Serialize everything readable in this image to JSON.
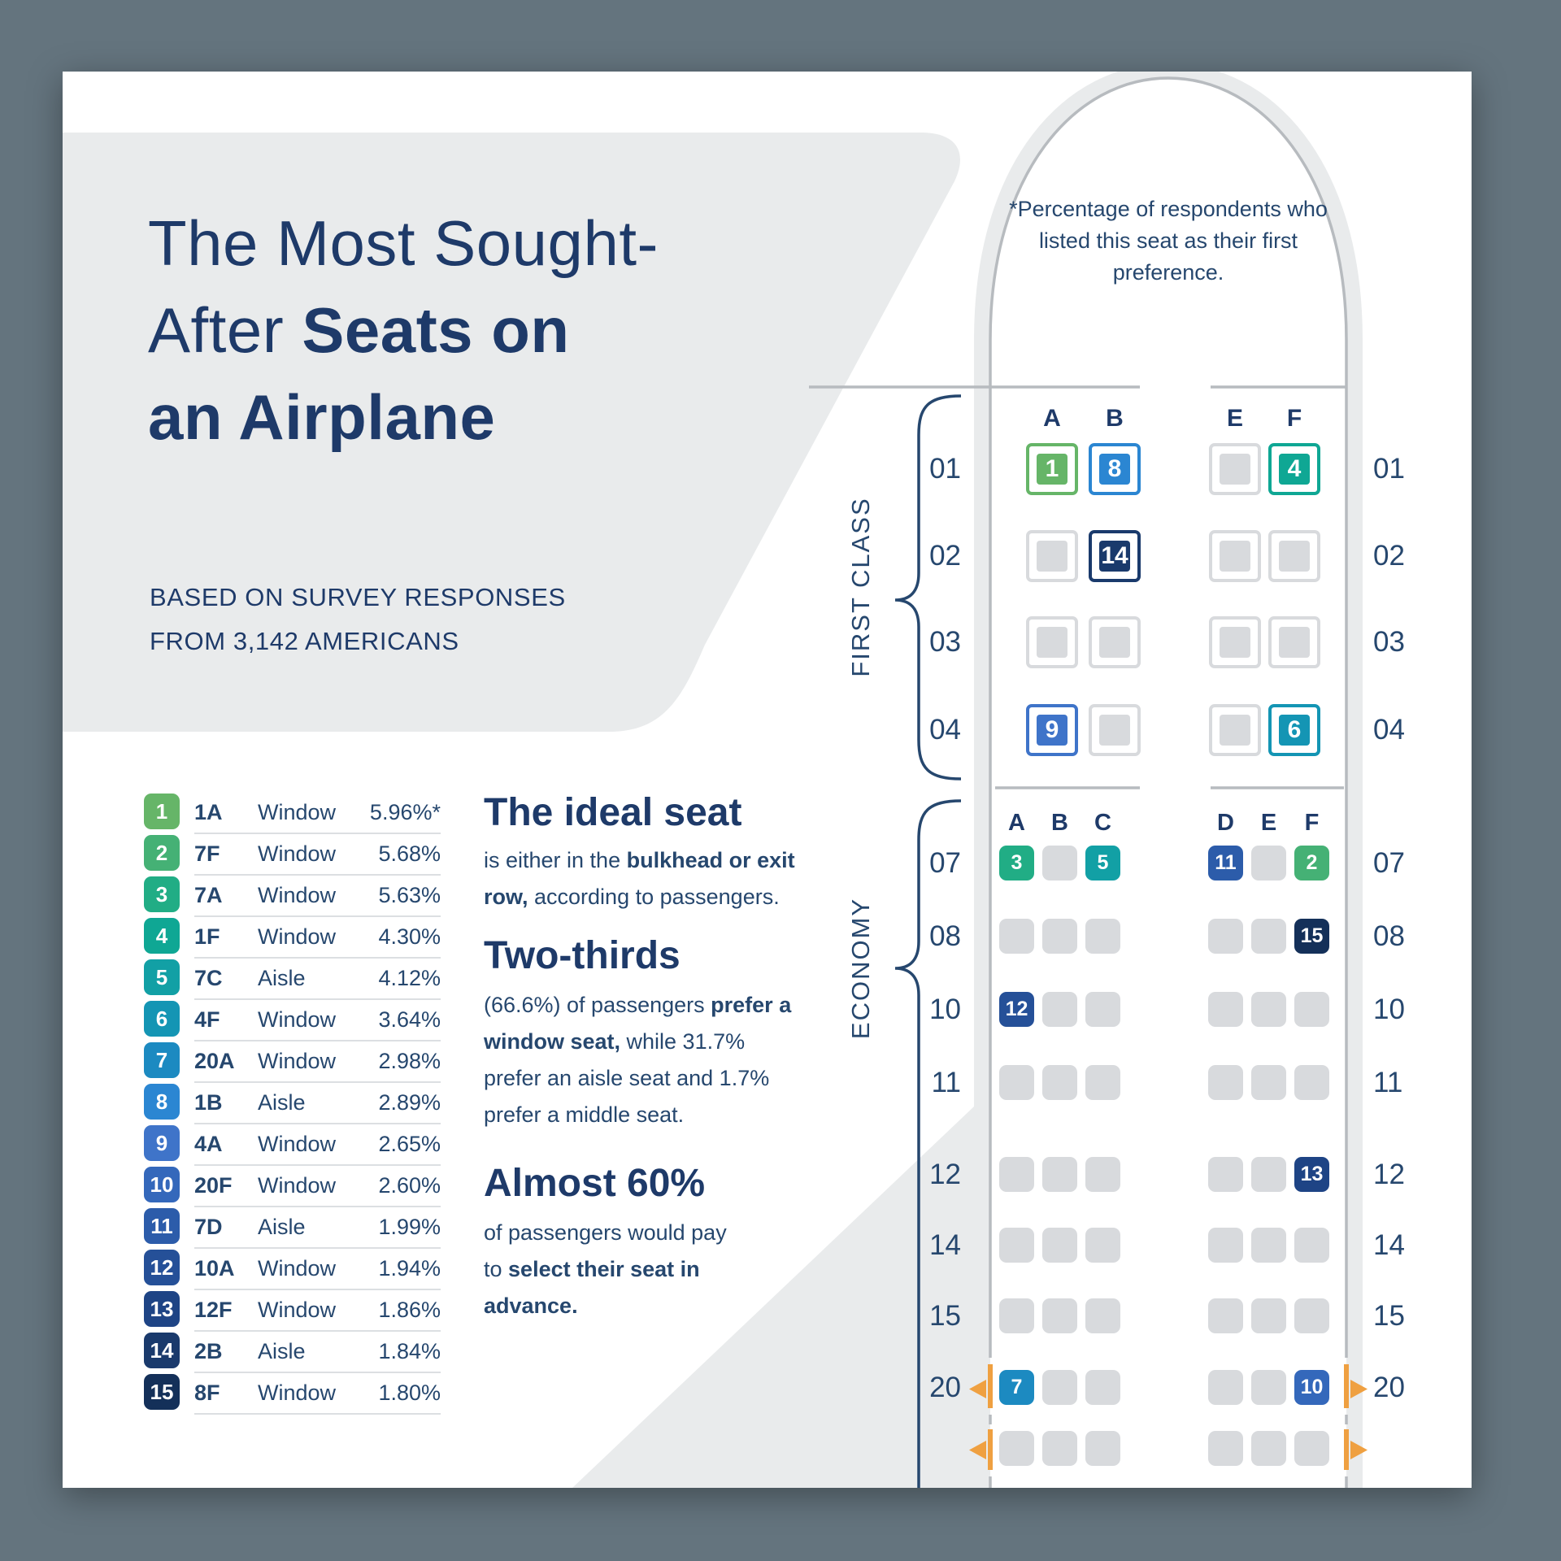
{
  "header": {
    "title_line1": "The Most Sought-",
    "title_line2_regular": "After ",
    "title_line2_bold": "Seats on",
    "title_line3_bold": "an Airplane",
    "subtitle_line1": "BASED ON SURVEY RESPONSES",
    "subtitle_line2": "FROM 3,142 AMERICANS"
  },
  "accent_colors": {
    "navy_text": "#1e3a69",
    "body_text": "#26476e",
    "slate_background": "#64747e",
    "panel_gray": "#e9ebec",
    "seat_gray": "#d8dadd",
    "outline_gray": "#b7bbbf",
    "exit_orange": "#efa041"
  },
  "ranking": {
    "colors": [
      "#66b568",
      "#45b175",
      "#21ad85",
      "#0fa794",
      "#12a0a5",
      "#1495b4",
      "#1c8ac1",
      "#2b86d2",
      "#3f74c9",
      "#3468bb",
      "#2c5caa",
      "#255098",
      "#1e4485",
      "#1a3a6c",
      "#143059"
    ],
    "rows": [
      {
        "rank": 1,
        "seat": "1A",
        "type": "Window",
        "pct": "5.96%*"
      },
      {
        "rank": 2,
        "seat": "7F",
        "type": "Window",
        "pct": "5.68%"
      },
      {
        "rank": 3,
        "seat": "7A",
        "type": "Window",
        "pct": "5.63%"
      },
      {
        "rank": 4,
        "seat": "1F",
        "type": "Window",
        "pct": "4.30%"
      },
      {
        "rank": 5,
        "seat": "7C",
        "type": "Aisle",
        "pct": "4.12%"
      },
      {
        "rank": 6,
        "seat": "4F",
        "type": "Window",
        "pct": "3.64%"
      },
      {
        "rank": 7,
        "seat": "20A",
        "type": "Window",
        "pct": "2.98%"
      },
      {
        "rank": 8,
        "seat": "1B",
        "type": "Aisle",
        "pct": "2.89%"
      },
      {
        "rank": 9,
        "seat": "4A",
        "type": "Window",
        "pct": "2.65%"
      },
      {
        "rank": 10,
        "seat": "20F",
        "type": "Window",
        "pct": "2.60%"
      },
      {
        "rank": 11,
        "seat": "7D",
        "type": "Aisle",
        "pct": "1.99%"
      },
      {
        "rank": 12,
        "seat": "10A",
        "type": "Window",
        "pct": "1.94%"
      },
      {
        "rank": 13,
        "seat": "12F",
        "type": "Window",
        "pct": "1.86%"
      },
      {
        "rank": 14,
        "seat": "2B",
        "type": "Aisle",
        "pct": "1.84%"
      },
      {
        "rank": 15,
        "seat": "8F",
        "type": "Window",
        "pct": "1.80%"
      }
    ]
  },
  "facts": {
    "ideal": {
      "heading": "The ideal seat",
      "parts": [
        {
          "text": "is either in the "
        },
        {
          "text": "bulkhead or exit row,",
          "bold": true
        },
        {
          "text": " according to passengers."
        }
      ]
    },
    "two_thirds": {
      "heading": "Two-thirds",
      "parts": [
        {
          "text": "(66.6%) of passengers "
        },
        {
          "text": "prefer a window seat,",
          "bold": true
        },
        {
          "text": " while 31.7% prefer an aisle seat and 1.7% prefer a middle seat."
        }
      ]
    },
    "almost60": {
      "heading": "Almost 60%",
      "parts": [
        {
          "text": "of passengers would pay to "
        },
        {
          "text": "select their seat in advance.",
          "bold": true
        }
      ]
    }
  },
  "seatmap": {
    "note": "*Percentage of respondents who listed this seat as their first preference.",
    "sections": [
      {
        "label": "FIRST CLASS"
      },
      {
        "label": "ECONOMY"
      }
    ],
    "first_class": {
      "columns": [
        "A",
        "B",
        "E",
        "F"
      ],
      "rows": [
        {
          "label": "01",
          "ranks": [
            1,
            8,
            null,
            4
          ]
        },
        {
          "label": "02",
          "ranks": [
            null,
            14,
            null,
            null
          ]
        },
        {
          "label": "03",
          "ranks": [
            null,
            null,
            null,
            null
          ]
        },
        {
          "label": "04",
          "ranks": [
            9,
            null,
            null,
            6
          ]
        }
      ]
    },
    "economy": {
      "columns": [
        "A",
        "B",
        "C",
        "D",
        "E",
        "F"
      ],
      "rows": [
        {
          "label": "07",
          "ranks": [
            3,
            null,
            5,
            11,
            null,
            2
          ]
        },
        {
          "label": "08",
          "ranks": [
            null,
            null,
            null,
            null,
            null,
            15
          ]
        },
        {
          "label": "10",
          "ranks": [
            12,
            null,
            null,
            null,
            null,
            null
          ]
        },
        {
          "label": "11",
          "ranks": [
            null,
            null,
            null,
            null,
            null,
            null
          ]
        },
        {
          "label": "12",
          "ranks": [
            null,
            null,
            null,
            null,
            null,
            13
          ]
        },
        {
          "label": "14",
          "ranks": [
            null,
            null,
            null,
            null,
            null,
            null
          ]
        },
        {
          "label": "15",
          "ranks": [
            null,
            null,
            null,
            null,
            null,
            null
          ]
        },
        {
          "label": "20",
          "ranks": [
            7,
            null,
            null,
            null,
            null,
            10
          ],
          "exit": true
        },
        {
          "label": "",
          "ranks": [
            null,
            null,
            null,
            null,
            null,
            null
          ],
          "exit": true
        }
      ]
    }
  },
  "chart_data": {
    "type": "table",
    "title": "The Most Sought-After Seats on an Airplane",
    "subtitle": "Based on survey responses from 3,142 Americans",
    "categories": [
      "1A",
      "7F",
      "7A",
      "1F",
      "7C",
      "4F",
      "20A",
      "1B",
      "4A",
      "20F",
      "7D",
      "10A",
      "12F",
      "2B",
      "8F"
    ],
    "series": [
      {
        "name": "seat_type",
        "values": [
          "Window",
          "Window",
          "Window",
          "Window",
          "Aisle",
          "Window",
          "Window",
          "Aisle",
          "Window",
          "Window",
          "Aisle",
          "Window",
          "Window",
          "Aisle",
          "Window"
        ]
      },
      {
        "name": "first_preference_pct",
        "values": [
          5.96,
          5.68,
          5.63,
          4.3,
          4.12,
          3.64,
          2.98,
          2.89,
          2.65,
          2.6,
          1.99,
          1.94,
          1.86,
          1.84,
          1.8
        ]
      }
    ],
    "annotations": [
      "*Percentage of respondents who listed this seat as their first preference.",
      "The ideal seat is either in the bulkhead or exit row, according to passengers.",
      "Two-thirds (66.6%) of passengers prefer a window seat, while 31.7% prefer an aisle seat and 1.7% prefer a middle seat.",
      "Almost 60% of passengers would pay to select their seat in advance."
    ]
  }
}
